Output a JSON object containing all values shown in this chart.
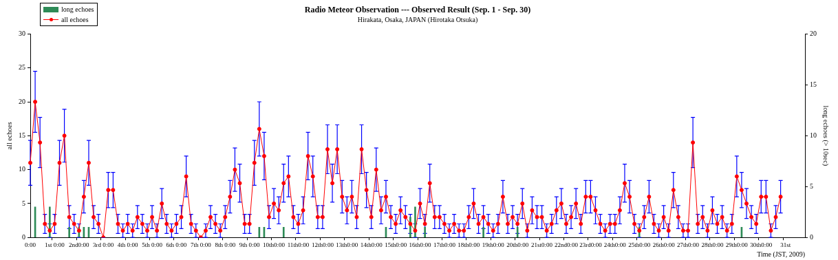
{
  "chart_data": {
    "type": "line",
    "title": "Radio Meteor Observation --- Observed Result (Sep. 1 - Sep. 30)",
    "subtitle": "Hirakata, Osaka, JAPAN (Hirotaka Otsuka)",
    "xlabel": "Time (JST, 2009)",
    "ylabel": "all echoes",
    "y2label": "long echoes (> 10sec)",
    "categories": [
      "0:00",
      null,
      null,
      null,
      null,
      "1st 0:00",
      null,
      null,
      null,
      null,
      "2nd0:00",
      null,
      null,
      null,
      null,
      "3rd 0:00",
      null,
      null,
      null,
      null,
      "4th 0:00",
      null,
      null,
      null,
      null,
      "5th 0:00",
      null,
      null,
      null,
      null,
      "6th 0:00",
      null,
      null,
      null,
      null,
      "7th 0:00",
      null,
      null,
      null,
      null,
      "8th 0:00",
      null,
      null,
      null,
      null,
      "9th 0:00",
      null,
      null,
      null,
      null,
      "10th0:00",
      null,
      null,
      null,
      null,
      "11th0:00",
      null,
      null,
      null,
      null,
      "12th0:00",
      null,
      null,
      null,
      null,
      "13th0:00",
      null,
      null,
      null,
      null,
      "14th0:00",
      null,
      null,
      null,
      null,
      "15th0:00",
      null,
      null,
      null,
      null,
      "16th0:00",
      null,
      null,
      null,
      null,
      "17th0:00",
      null,
      null,
      null,
      null,
      "18th0:00",
      null,
      null,
      null,
      null,
      "19th0:00",
      null,
      null,
      null,
      null,
      "20th0:00",
      null,
      null,
      null,
      null,
      "21st0:00",
      null,
      null,
      null,
      null,
      "22nd0:00",
      null,
      null,
      null,
      null,
      "23rd0:00",
      null,
      null,
      null,
      null,
      "24th0:00",
      null,
      null,
      null,
      null,
      "25th0:00",
      null,
      null,
      null,
      null,
      "26th0:00",
      null,
      null,
      null,
      null,
      "27th0:00",
      null,
      null,
      null,
      null,
      "28th0:00",
      null,
      null,
      null,
      null,
      "29th0:00",
      null,
      null,
      null,
      null,
      "30th0:00",
      null,
      null,
      null,
      null,
      "31st",
      null,
      null,
      null,
      null
    ],
    "ylim": [
      0,
      30
    ],
    "yticks": [
      0,
      5,
      10,
      15,
      20,
      25,
      30
    ],
    "y2lim": [
      0,
      20
    ],
    "y2ticks": [
      0,
      5,
      10,
      15,
      20
    ],
    "grid": false,
    "legend": "top left",
    "marker": "circle",
    "line_style": "solid",
    "series": [
      {
        "name": "long echoes",
        "type": "bar",
        "axis": "y2",
        "color": "#2e8b57",
        "values": [
          null,
          3,
          null,
          null,
          3,
          null,
          null,
          null,
          1,
          null,
          1,
          1,
          1,
          null,
          null,
          null,
          null,
          null,
          null,
          null,
          null,
          null,
          null,
          null,
          null,
          null,
          null,
          null,
          null,
          null,
          null,
          null,
          null,
          null,
          null,
          null,
          null,
          null,
          null,
          null,
          null,
          null,
          null,
          null,
          null,
          null,
          null,
          1,
          1,
          null,
          null,
          null,
          1,
          null,
          null,
          null,
          null,
          null,
          null,
          null,
          null,
          null,
          null,
          null,
          null,
          null,
          null,
          null,
          null,
          null,
          null,
          null,
          null,
          1,
          null,
          null,
          null,
          null,
          2,
          3,
          null,
          1,
          null,
          null,
          null,
          null,
          null,
          null,
          null,
          null,
          null,
          null,
          null,
          1,
          null,
          null,
          null,
          null,
          null,
          null,
          1,
          null,
          null,
          null,
          null,
          null,
          null,
          null,
          null,
          null,
          null,
          null,
          null,
          null,
          null,
          null,
          null,
          null,
          null,
          null,
          null,
          null,
          null,
          null,
          null,
          1,
          null,
          null,
          null,
          null,
          null,
          null,
          null,
          null,
          null,
          null,
          null,
          null,
          null,
          null,
          null,
          null,
          null,
          null,
          null,
          null,
          1,
          null,
          null,
          null,
          null,
          null,
          null,
          null,
          null,
          null,
          null,
          null,
          null,
          null
        ]
      },
      {
        "name": "all echoes",
        "color": "#ff0000",
        "values": [
          11,
          20,
          14,
          2,
          1,
          2,
          11,
          15,
          3,
          2,
          1,
          6,
          11,
          3,
          2,
          0,
          7,
          7,
          2,
          1,
          2,
          1,
          3,
          2,
          1,
          3,
          1,
          5,
          2,
          1,
          2,
          3,
          9,
          2,
          1,
          0,
          1,
          3,
          2,
          1,
          3,
          6,
          10,
          8,
          2,
          2,
          11,
          16,
          12,
          3,
          5,
          4,
          8,
          9,
          3,
          2,
          4,
          12,
          9,
          3,
          3,
          13,
          8,
          13,
          6,
          4,
          6,
          3,
          13,
          7,
          3,
          10,
          4,
          6,
          3,
          2,
          4,
          3,
          2,
          1,
          5,
          2,
          8,
          3,
          3,
          2,
          1,
          2,
          1,
          1,
          3,
          5,
          2,
          3,
          2,
          1,
          2,
          6,
          2,
          3,
          2,
          5,
          1,
          4,
          3,
          3,
          1,
          2,
          4,
          5,
          2,
          3,
          5,
          2,
          6,
          6,
          4,
          2,
          1,
          2,
          2,
          4,
          8,
          6,
          2,
          1,
          3,
          6,
          2,
          1,
          3,
          1,
          7,
          3,
          1,
          1,
          14,
          2,
          3,
          1,
          4,
          2,
          3,
          1,
          2,
          9,
          7,
          5,
          3,
          2,
          6,
          6,
          1,
          3,
          6,
          null,
          null,
          null,
          null,
          null
        ],
        "errors": [
          3.3,
          4.5,
          3.7,
          1.4,
          1,
          1.4,
          3.3,
          3.9,
          1.7,
          1.4,
          1,
          2.4,
          3.3,
          1.7,
          1.4,
          0,
          2.6,
          2.6,
          1.4,
          1,
          1.4,
          1,
          1.7,
          1.4,
          1,
          1.7,
          1,
          2.2,
          1.4,
          1,
          1.4,
          1.7,
          3,
          1.4,
          1,
          0,
          1,
          1.7,
          1.4,
          1,
          1.7,
          2.4,
          3.2,
          2.8,
          1.4,
          1.4,
          3.3,
          4,
          3.5,
          1.7,
          2.2,
          2,
          2.8,
          3,
          1.7,
          1.4,
          2,
          3.5,
          3,
          1.7,
          1.7,
          3.6,
          2.8,
          3.6,
          2.4,
          2,
          2.4,
          1.7,
          3.6,
          2.6,
          1.7,
          3.2,
          2,
          2.4,
          1.7,
          1.4,
          2,
          1.7,
          1.4,
          1,
          2.2,
          1.4,
          2.8,
          1.7,
          1.7,
          1.4,
          1,
          1.4,
          1,
          1,
          1.7,
          2.2,
          1.4,
          1.7,
          1.4,
          1,
          1.4,
          2.4,
          1.4,
          1.7,
          1.4,
          2.2,
          1,
          2,
          1.7,
          1.7,
          1,
          1.4,
          2,
          2.2,
          1.4,
          1.7,
          2.2,
          1.4,
          2.4,
          2.4,
          2,
          1.4,
          1,
          1.4,
          1.4,
          2,
          2.8,
          2.4,
          1.4,
          1,
          1.7,
          2.4,
          1.4,
          1,
          1.7,
          1,
          2.6,
          1.7,
          1,
          1,
          3.7,
          1.4,
          1.7,
          1,
          2,
          1.4,
          1.7,
          1,
          1.4,
          3,
          2.6,
          2.2,
          1.7,
          1.4,
          2.4,
          2.4,
          1,
          1.7,
          2.4,
          null,
          null,
          null,
          null,
          null
        ]
      }
    ]
  }
}
